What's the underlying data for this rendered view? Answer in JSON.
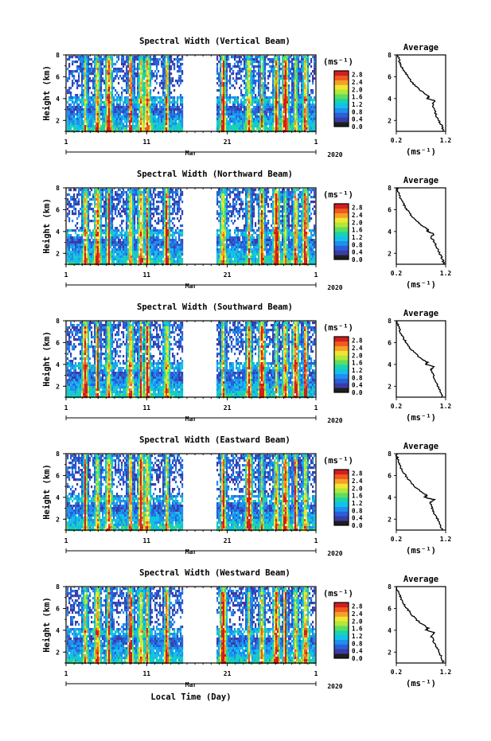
{
  "chart_data": {
    "type": "heatmap",
    "x_axis": {
      "label": "Local Time (Day)",
      "month_label": "Mar",
      "year_label": "2020",
      "ticks": [
        "1",
        "11",
        "21",
        "1"
      ],
      "range_days": [
        1,
        32
      ]
    },
    "y_axis": {
      "label": "Height (km)",
      "range_km": [
        1,
        8
      ],
      "ticks": [
        "2",
        "4",
        "6",
        "8"
      ]
    },
    "colorbar": {
      "unit": "(ms⁻¹)",
      "ticks": [
        "0.0",
        "0.4",
        "0.8",
        "1.2",
        "1.6",
        "2.0",
        "2.4",
        "2.8"
      ],
      "range": [
        0,
        3.0
      ],
      "colors": [
        "#1e1e1e",
        "#3b3ba8",
        "#2a5fd6",
        "#1e90f0",
        "#14c0e8",
        "#19d4b0",
        "#5ede5e",
        "#b4e63c",
        "#f0e632",
        "#f5a028",
        "#f05a1e",
        "#d21e1e"
      ]
    },
    "data_gap_days": [
      15.5,
      19.5
    ],
    "panels": [
      {
        "title": "Spectral Width (Vertical Beam)",
        "average": {
          "title": "Average",
          "xlabel": "(ms⁻¹)",
          "xticks": [
            "0.2",
            "1.2"
          ],
          "xlim": [
            0.2,
            1.2
          ],
          "height_km": [
            1.0,
            1.5,
            2.0,
            2.5,
            3.0,
            3.5,
            3.8,
            4.0,
            4.2,
            4.5,
            5.0,
            5.5,
            6.0,
            6.5,
            7.0,
            7.5,
            8.0
          ],
          "values": [
            1.15,
            1.12,
            1.06,
            1.0,
            0.97,
            0.93,
            0.98,
            0.83,
            0.86,
            0.76,
            0.62,
            0.52,
            0.44,
            0.36,
            0.3,
            0.26,
            0.22
          ]
        }
      },
      {
        "title": "Spectral Width (Northward Beam)",
        "average": {
          "title": "Average",
          "xlabel": "(ms⁻¹)",
          "xticks": [
            "0.2",
            "1.2"
          ],
          "xlim": [
            0.2,
            1.2
          ],
          "height_km": [
            1.0,
            1.5,
            2.0,
            2.5,
            3.0,
            3.5,
            3.8,
            4.0,
            4.2,
            4.5,
            5.0,
            5.5,
            6.0,
            6.5,
            7.0,
            7.5,
            8.0
          ],
          "values": [
            1.17,
            1.13,
            1.08,
            1.02,
            0.98,
            0.9,
            0.96,
            0.82,
            0.84,
            0.74,
            0.6,
            0.5,
            0.42,
            0.35,
            0.29,
            0.25,
            0.21
          ]
        }
      },
      {
        "title": "Spectral Width (Southward Beam)",
        "average": {
          "title": "Average",
          "xlabel": "(ms⁻¹)",
          "xticks": [
            "0.2",
            "1.2"
          ],
          "xlim": [
            0.2,
            1.2
          ],
          "height_km": [
            1.0,
            1.5,
            2.0,
            2.5,
            3.0,
            3.5,
            3.8,
            4.0,
            4.2,
            4.5,
            5.0,
            5.5,
            6.0,
            6.5,
            7.0,
            7.5,
            8.0
          ],
          "values": [
            1.14,
            1.1,
            1.05,
            0.99,
            0.95,
            0.9,
            0.95,
            0.8,
            0.83,
            0.72,
            0.58,
            0.48,
            0.4,
            0.33,
            0.28,
            0.24,
            0.21
          ]
        }
      },
      {
        "title": "Spectral Width (Eastward Beam)",
        "average": {
          "title": "Average",
          "xlabel": "(ms⁻¹)",
          "xticks": [
            "0.2",
            "1.2"
          ],
          "xlim": [
            0.2,
            1.2
          ],
          "height_km": [
            1.0,
            1.5,
            2.0,
            2.5,
            3.0,
            3.5,
            3.8,
            4.0,
            4.2,
            4.5,
            5.0,
            5.5,
            6.0,
            6.5,
            7.0,
            7.5,
            8.0
          ],
          "values": [
            1.13,
            1.09,
            1.04,
            0.98,
            0.93,
            0.88,
            0.96,
            0.78,
            0.82,
            0.71,
            0.57,
            0.47,
            0.39,
            0.32,
            0.27,
            0.23,
            0.2
          ]
        }
      },
      {
        "title": "Spectral Width (Westward Beam)",
        "average": {
          "title": "Average",
          "xlabel": "(ms⁻¹)",
          "xticks": [
            "0.2",
            "1.2"
          ],
          "xlim": [
            0.2,
            1.2
          ],
          "height_km": [
            1.0,
            1.5,
            2.0,
            2.5,
            3.0,
            3.5,
            3.8,
            4.0,
            4.2,
            4.5,
            5.0,
            5.5,
            6.0,
            6.5,
            7.0,
            7.5,
            8.0
          ],
          "values": [
            1.16,
            1.12,
            1.07,
            1.01,
            0.96,
            0.91,
            0.97,
            0.81,
            0.85,
            0.74,
            0.6,
            0.5,
            0.42,
            0.34,
            0.29,
            0.24,
            0.21
          ]
        }
      }
    ]
  }
}
